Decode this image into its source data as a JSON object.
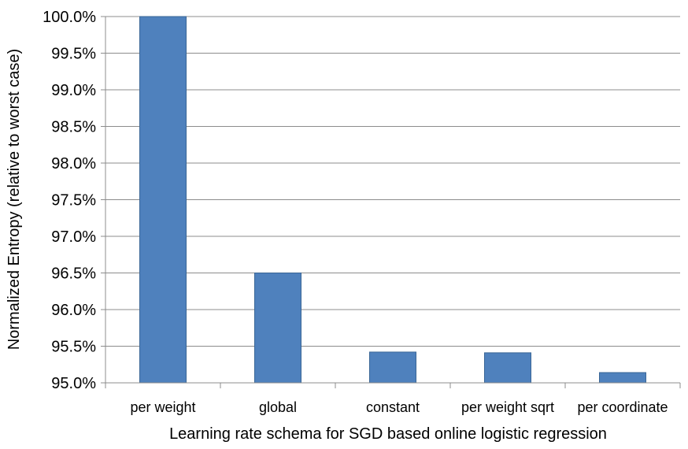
{
  "chart_data": {
    "type": "bar",
    "title": "",
    "xlabel": "Learning rate schema for SGD based online logistic regression",
    "ylabel": "Normalized Entropy (relative to worst case)",
    "categories": [
      "per weight",
      "global",
      "constant",
      "per weight sqrt",
      "per coordinate"
    ],
    "values": [
      100.0,
      96.5,
      95.42,
      95.41,
      95.14
    ],
    "ylim": [
      95.0,
      100.0
    ],
    "yticks": [
      95.0,
      95.5,
      96.0,
      96.5,
      97.0,
      97.5,
      98.0,
      98.5,
      99.0,
      99.5,
      100.0
    ],
    "ytick_labels": [
      "95.0%",
      "95.5%",
      "96.0%",
      "96.5%",
      "97.0%",
      "97.5%",
      "98.0%",
      "98.5%",
      "99.0%",
      "99.5%",
      "100.0%"
    ],
    "grid": true,
    "legend": "none",
    "bar_color": "#4F81BD",
    "bar_edge_color": "#3A6696",
    "grid_color": "#8c8c8c"
  }
}
